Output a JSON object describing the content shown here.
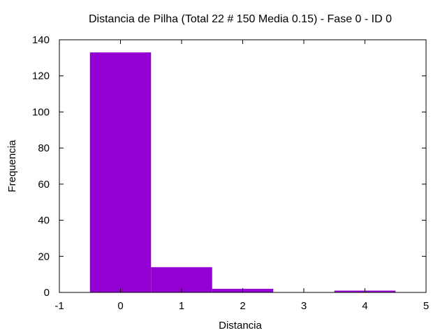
{
  "chart_data": {
    "type": "bar",
    "title": "Distancia de Pilha (Total 22 # 150 Media 0.15) - Fase  0 - ID 0",
    "xlabel": "Distancia",
    "ylabel": "Frequencia",
    "xlim": [
      -1,
      5
    ],
    "ylim": [
      0,
      140
    ],
    "x_ticks": [
      "-1",
      "0",
      "1",
      "2",
      "3",
      "4",
      "5"
    ],
    "y_ticks": [
      "0",
      "20",
      "40",
      "60",
      "80",
      "100",
      "120",
      "140"
    ],
    "grid": false,
    "legend": "none",
    "bar_width": 1,
    "bar_color": "#9400d3",
    "x": [
      0,
      1,
      2,
      3,
      4
    ],
    "values": [
      133,
      14,
      2,
      0,
      1
    ]
  }
}
